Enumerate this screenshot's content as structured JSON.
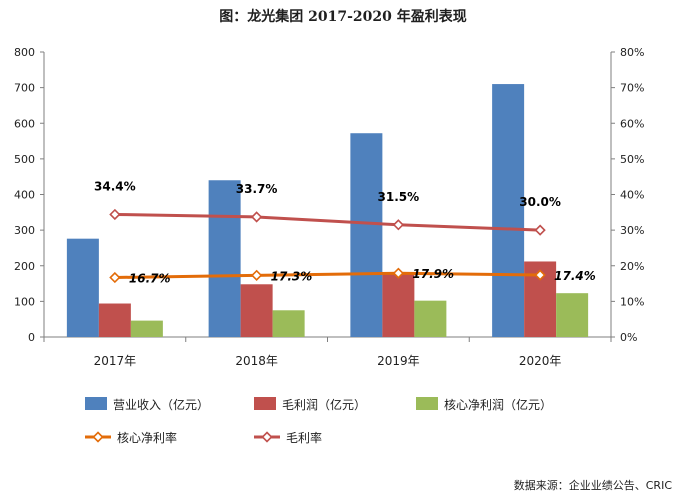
{
  "title": "图：龙光集团 2017-2020 年盈利表现",
  "source": "数据来源：企业业绩公告、CRIC",
  "chart_data": {
    "type": "bar",
    "title": "图：龙光集团 2017-2020 年盈利表现",
    "categories": [
      "2017年",
      "2018年",
      "2019年",
      "2020年"
    ],
    "y_left": {
      "min": 0,
      "max": 800,
      "ticks": [
        "0",
        "100",
        "200",
        "300",
        "400",
        "500",
        "600",
        "700",
        "800"
      ]
    },
    "y_right": {
      "min": 0,
      "max": 80,
      "ticks": [
        "0%",
        "10%",
        "20%",
        "30%",
        "40%",
        "50%",
        "60%",
        "70%",
        "80%"
      ]
    },
    "grid": false,
    "legend_position": "bottom",
    "bar_series": [
      {
        "name": "营业收入（亿元）",
        "color": "#4f81bd",
        "values": [
          276,
          440,
          572,
          710
        ]
      },
      {
        "name": "毛利润（亿元）",
        "color": "#c0504d",
        "values": [
          94,
          148,
          180,
          212
        ]
      },
      {
        "name": "核心净利润（亿元）",
        "color": "#9bbb59",
        "values": [
          46,
          75,
          102,
          123
        ]
      }
    ],
    "line_series": [
      {
        "name": "核心净利率",
        "color": "#e36c09",
        "values": [
          16.7,
          17.3,
          17.9,
          17.4
        ],
        "labels": [
          "16.7%",
          "17.3%",
          "17.9%",
          "17.4%"
        ]
      },
      {
        "name": "毛利率",
        "color": "#c0504d",
        "values": [
          34.4,
          33.7,
          31.5,
          30.0
        ],
        "labels": [
          "34.4%",
          "33.7%",
          "31.5%",
          "30.0%"
        ]
      }
    ]
  }
}
